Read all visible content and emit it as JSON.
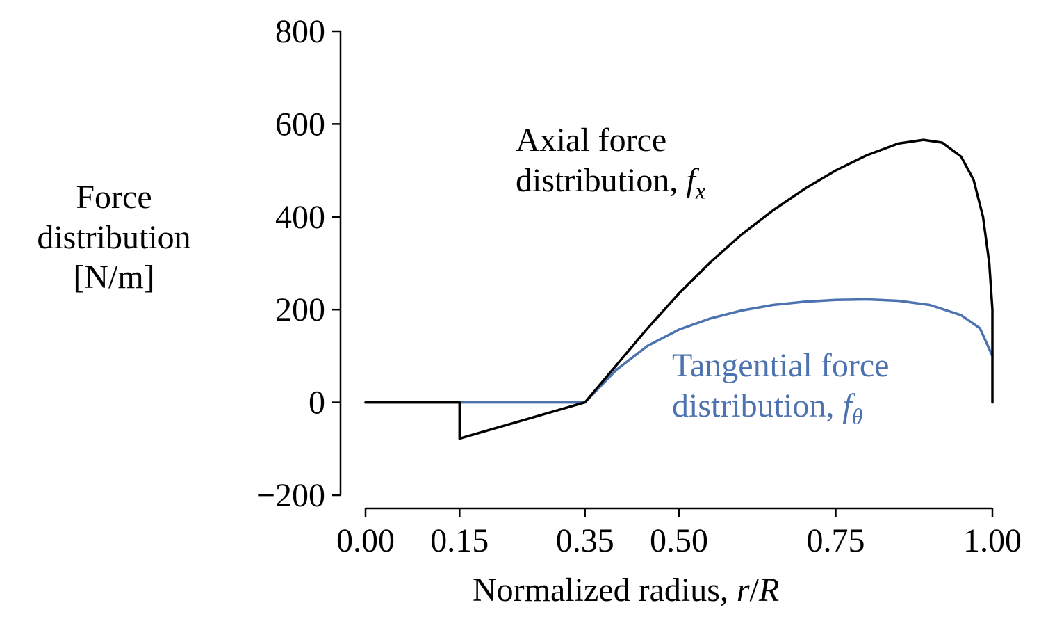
{
  "chart_data": {
    "type": "line",
    "xlabel": "Normalized radius, r/R",
    "xlabel_parts": [
      "Normalized radius, ",
      "r",
      "/",
      "R"
    ],
    "ylabel_lines": [
      "Force",
      "distribution",
      "[N/m]"
    ],
    "xlim": [
      0.0,
      1.0
    ],
    "ylim": [
      -200,
      800
    ],
    "x_ticks": [
      0.0,
      0.15,
      0.35,
      0.5,
      0.75,
      1.0
    ],
    "x_tick_labels": [
      "0.00",
      "0.15",
      "0.35",
      "0.50",
      "0.75",
      "1.00"
    ],
    "y_ticks": [
      -200,
      0,
      200,
      400,
      600,
      800
    ],
    "y_tick_labels": [
      "−200",
      "0",
      "200",
      "400",
      "600",
      "800"
    ],
    "grid": false,
    "annotations": [
      {
        "series": "axial",
        "lines": [
          "Axial force",
          "distribution, "
        ],
        "symbol": "f",
        "subscript": "x"
      },
      {
        "series": "tangential",
        "lines": [
          "Tangential force",
          "distribution, "
        ],
        "symbol": "f",
        "subscript": "θ"
      }
    ],
    "series": [
      {
        "id": "axial",
        "color": "#000000",
        "x": [
          0.0,
          0.15,
          0.15,
          0.35,
          0.4,
          0.45,
          0.5,
          0.55,
          0.6,
          0.65,
          0.7,
          0.75,
          0.8,
          0.85,
          0.89,
          0.92,
          0.95,
          0.97,
          0.985,
          0.995,
          1.0,
          1.0
        ],
        "y": [
          0,
          0,
          -78,
          0,
          80,
          160,
          235,
          302,
          362,
          414,
          460,
          500,
          533,
          558,
          566,
          560,
          530,
          480,
          400,
          300,
          200,
          0
        ]
      },
      {
        "id": "tangential",
        "color": "#4c72b0",
        "x": [
          0.0,
          0.35,
          0.4,
          0.45,
          0.5,
          0.55,
          0.6,
          0.65,
          0.7,
          0.75,
          0.8,
          0.85,
          0.9,
          0.95,
          0.98,
          1.0
        ],
        "y": [
          0,
          0,
          70,
          122,
          157,
          181,
          198,
          210,
          217,
          221,
          222,
          219,
          210,
          188,
          160,
          100
        ]
      }
    ]
  }
}
